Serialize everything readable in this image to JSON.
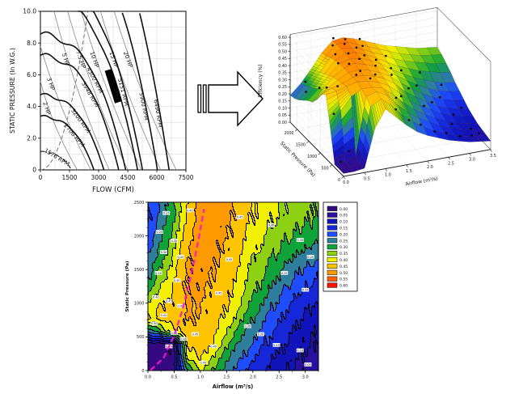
{
  "page": {
    "background": "#ffffff"
  },
  "arrow_icon": {
    "meaning": "transforms-into"
  },
  "chart_data": [
    {
      "id": "fan_performance_map",
      "type": "line",
      "xlabel": "FLOW (CFM)",
      "ylabel": "STATIC PRESSURE (In W.G.)",
      "xlim": [
        0,
        7500
      ],
      "ylim": [
        0,
        10
      ],
      "xtick_labels": [
        "0",
        "1500",
        "3000",
        "4500",
        "6000",
        "7500"
      ],
      "ytick_labels": [
        "0",
        "2.0",
        "4.0",
        "6.0",
        "8.0",
        "10.0"
      ],
      "grid": true,
      "rpm_curves": [
        {
          "label": "1576 RPM",
          "shutoff_pressure": 1.15,
          "free_delivery_cfm": 1611,
          "style": "dashdot",
          "label_t": 0.55
        },
        {
          "label": "2700 RPM",
          "shutoff_pressure": 3.38,
          "free_delivery_cfm": 2760
        },
        {
          "label": "3200 RPM",
          "shutoff_pressure": 4.74,
          "free_delivery_cfm": 3271
        },
        {
          "label": "3948 RPM",
          "shutoff_pressure": 7.22,
          "free_delivery_cfm": 4035
        },
        {
          "label": "4300 RPM",
          "shutoff_pressure": 8.56,
          "free_delivery_cfm": 4395
        },
        {
          "label": "4900 RPM",
          "shutoff_pressure": 11.12,
          "free_delivery_cfm": 5008,
          "highlighted": true
        },
        {
          "label": "5151 RPM",
          "shutoff_pressure": 12.29,
          "free_delivery_cfm": 5264
        },
        {
          "label": "5900 RPM",
          "shutoff_pressure": 16.12,
          "free_delivery_cfm": 6030
        },
        {
          "label": "6490 RPM",
          "shutoff_pressure": 19.5,
          "free_delivery_cfm": 6633
        }
      ],
      "hp_curves": [
        {
          "label": "2 HP",
          "from": [
            0,
            5.6
          ],
          "to": [
            1900,
            0
          ]
        },
        {
          "label": "3 HP",
          "from": [
            0,
            7.8
          ],
          "to": [
            2600,
            0
          ]
        },
        {
          "label": "5 HP",
          "from": [
            700,
            10
          ],
          "to": [
            3550,
            0
          ]
        },
        {
          "label": "7.5 HP",
          "from": [
            1400,
            10
          ],
          "to": [
            4500,
            0
          ]
        },
        {
          "label": "10 HP",
          "from": [
            2100,
            10
          ],
          "to": [
            5200,
            0
          ]
        },
        {
          "label": "15 HP",
          "from": [
            3100,
            10
          ],
          "to": [
            6200,
            0
          ]
        },
        {
          "label": "20 HP",
          "from": [
            3800,
            10
          ],
          "to": [
            7000,
            0
          ]
        }
      ],
      "system_curve": {
        "style": "dashed",
        "end": [
          2450,
          10
        ]
      }
    },
    {
      "id": "efficiency_surface_3d",
      "type": "surface",
      "xlabel": "Airflow (m³/s)",
      "ylabel": "Static Pressure (Pa)",
      "zlabel": "Efficiency (%)",
      "xtick_labels": [
        "0.0",
        "0.5",
        "1.0",
        "1.5",
        "2.0",
        "2.5",
        "3.0",
        "3.5"
      ],
      "ytick_labels": [
        "0",
        "500",
        "1000",
        "1500",
        "2000"
      ],
      "ztick_labels": [
        "0.00",
        "0.05",
        "0.10",
        "0.15",
        "0.20",
        "0.25",
        "0.30",
        "0.35",
        "0.40",
        "0.45",
        "0.50",
        "0.55",
        "0.60"
      ],
      "xlim": [
        0,
        3.5
      ],
      "ylim": [
        0,
        2300
      ],
      "zlim": [
        0,
        0.62
      ],
      "grid": {
        "airflow": [
          0,
          0.25,
          0.5,
          0.75,
          1.0,
          1.25,
          1.5,
          1.75,
          2.0,
          2.25,
          2.5,
          2.75,
          3.0,
          3.25,
          3.5
        ],
        "pressure": [
          0,
          192,
          383,
          575,
          767,
          958,
          1150,
          1342,
          1533,
          1725,
          1917,
          2108,
          2300
        ],
        "efficiency": [
          [
            0.02,
            0.02,
            0.03,
            0.3,
            0.42,
            0.35,
            0.28,
            0.22,
            0.18,
            0.15,
            0.12,
            0.1,
            0.08,
            0.07,
            0.06
          ],
          [
            0.02,
            0.02,
            0.03,
            0.42,
            0.46,
            0.4,
            0.32,
            0.26,
            0.21,
            0.17,
            0.14,
            0.11,
            0.09,
            0.08,
            0.07
          ],
          [
            0.02,
            0.03,
            0.05,
            0.46,
            0.48,
            0.44,
            0.36,
            0.29,
            0.24,
            0.2,
            0.16,
            0.13,
            0.11,
            0.09,
            0.08
          ],
          [
            0.25,
            0.35,
            0.44,
            0.48,
            0.48,
            0.46,
            0.4,
            0.33,
            0.27,
            0.22,
            0.18,
            0.15,
            0.12,
            0.1,
            0.09
          ],
          [
            0.45,
            0.46,
            0.48,
            0.5,
            0.49,
            0.47,
            0.43,
            0.37,
            0.3,
            0.25,
            0.21,
            0.17,
            0.14,
            0.12,
            0.11
          ],
          [
            0.42,
            0.45,
            0.47,
            0.5,
            0.5,
            0.48,
            0.45,
            0.4,
            0.33,
            0.28,
            0.23,
            0.19,
            0.16,
            0.14,
            0.13
          ],
          [
            0.35,
            0.42,
            0.46,
            0.5,
            0.51,
            0.49,
            0.46,
            0.42,
            0.36,
            0.31,
            0.26,
            0.22,
            0.19,
            0.17,
            0.16
          ],
          [
            0.3,
            0.38,
            0.45,
            0.5,
            0.52,
            0.5,
            0.47,
            0.43,
            0.38,
            0.33,
            0.29,
            0.25,
            0.22,
            0.2,
            0.19
          ],
          [
            0.28,
            0.35,
            0.43,
            0.5,
            0.52,
            0.51,
            0.48,
            0.44,
            0.39,
            0.35,
            0.31,
            0.28,
            0.25,
            0.23,
            0.22
          ],
          [
            0.25,
            0.32,
            0.41,
            0.49,
            0.53,
            0.52,
            0.49,
            0.45,
            0.41,
            0.37,
            0.34,
            0.31,
            0.29,
            0.27,
            0.26
          ],
          [
            0.22,
            0.3,
            0.39,
            0.48,
            0.53,
            0.52,
            0.5,
            0.46,
            0.43,
            0.39,
            0.36,
            0.34,
            0.32,
            0.3,
            0.29
          ],
          [
            0.2,
            0.28,
            0.37,
            0.46,
            0.53,
            0.53,
            0.5,
            0.47,
            0.44,
            0.41,
            0.38,
            0.36,
            0.34,
            0.33,
            0.32
          ],
          [
            0.19,
            0.26,
            0.35,
            0.45,
            0.52,
            0.53,
            0.51,
            0.48,
            0.45,
            0.42,
            0.4,
            0.38,
            0.36,
            0.35,
            0.34
          ]
        ]
      },
      "scatter_points": [
        [
          0.7,
          1500
        ],
        [
          0.8,
          1800
        ],
        [
          0.9,
          2100
        ],
        [
          1.0,
          2250
        ],
        [
          1.1,
          1950
        ],
        [
          1.2,
          2100
        ],
        [
          1.3,
          1800
        ],
        [
          1.0,
          1600
        ],
        [
          1.15,
          1400
        ],
        [
          1.35,
          1550
        ],
        [
          1.5,
          1900
        ],
        [
          1.6,
          2200
        ],
        [
          1.45,
          1250
        ],
        [
          0.85,
          1300
        ],
        [
          0.95,
          1000
        ],
        [
          1.25,
          900
        ],
        [
          1.05,
          750
        ],
        [
          0.8,
          900
        ],
        [
          1.6,
          1500
        ],
        [
          1.75,
          1100
        ],
        [
          1.9,
          1400
        ],
        [
          2.0,
          1800
        ],
        [
          2.1,
          1000
        ],
        [
          2.2,
          1500
        ],
        [
          2.3,
          700
        ],
        [
          2.4,
          1200
        ],
        [
          1.7,
          600
        ],
        [
          1.5,
          450
        ],
        [
          2.6,
          900
        ],
        [
          2.7,
          1600
        ],
        [
          2.8,
          400
        ],
        [
          2.9,
          1100
        ],
        [
          3.0,
          700
        ],
        [
          3.1,
          1400
        ],
        [
          3.2,
          300
        ],
        [
          3.3,
          900
        ],
        [
          1.3,
          100
        ],
        [
          1.6,
          80
        ],
        [
          1.9,
          120
        ],
        [
          2.2,
          60
        ],
        [
          2.5,
          100
        ],
        [
          2.8,
          50
        ],
        [
          3.1,
          90
        ],
        [
          3.3,
          150
        ],
        [
          0.1,
          600
        ],
        [
          0.15,
          1000
        ],
        [
          0.2,
          1400
        ],
        [
          0.1,
          1800
        ],
        [
          0.25,
          2100
        ],
        [
          0.3,
          800
        ],
        [
          0.1,
          300
        ],
        [
          0.35,
          400
        ]
      ]
    },
    {
      "id": "efficiency_contour",
      "type": "heatmap",
      "xlabel": "Airflow (m³/s)",
      "ylabel": "Static Pressure (Pa)",
      "xtick_labels": [
        "0.0",
        "0.5",
        "1.0",
        "1.5",
        "2.0",
        "2.5",
        "3.0"
      ],
      "ytick_labels": [
        "0",
        "500",
        "1000",
        "1500",
        "2000",
        "2500"
      ],
      "xlim": [
        0,
        3.25
      ],
      "ylim": [
        0,
        2500
      ],
      "colormap_levels": [
        0.0,
        0.05,
        0.1,
        0.15,
        0.2,
        0.25,
        0.3,
        0.35,
        0.4,
        0.45,
        0.5,
        0.55,
        0.6
      ],
      "colormap_colors": [
        "#350a80",
        "#2a10a0",
        "#1113bb",
        "#1527d9",
        "#1e4cff",
        "#2e7f9e",
        "#0fa33a",
        "#8ed112",
        "#f0f000",
        "#ffc400",
        "#ff9900",
        "#ff5e00",
        "#ff1000"
      ],
      "legend_labels": [
        "0.00",
        "0.05",
        "0.10",
        "0.15",
        "0.20",
        "0.25",
        "0.30",
        "0.35",
        "0.40",
        "0.45",
        "0.50",
        "0.55",
        "0.60"
      ],
      "operating_line": {
        "color": "#ff14c8",
        "style": "dashed",
        "points_qp": [
          [
            0.05,
            5
          ],
          [
            0.3,
            190
          ],
          [
            0.5,
            520
          ],
          [
            0.65,
            880
          ],
          [
            0.78,
            1270
          ],
          [
            0.88,
            1620
          ],
          [
            0.97,
            1970
          ],
          [
            1.04,
            2270
          ],
          [
            1.07,
            2400
          ]
        ]
      },
      "contour_label_points": [
        [
          0.35,
          2340
        ],
        [
          0.8,
          2380
        ],
        [
          0.22,
          2060
        ],
        [
          0.5,
          1930
        ],
        [
          0.3,
          1760
        ],
        [
          0.62,
          1690
        ],
        [
          0.2,
          1450
        ],
        [
          0.55,
          1340
        ],
        [
          0.15,
          1090
        ],
        [
          0.4,
          1030
        ],
        [
          0.62,
          960
        ],
        [
          0.3,
          820
        ],
        [
          0.12,
          700
        ],
        [
          0.5,
          560
        ],
        [
          0.68,
          470
        ],
        [
          0.4,
          360
        ],
        [
          0.9,
          540
        ],
        [
          1.25,
          360
        ],
        [
          1.05,
          120
        ],
        [
          1.9,
          660
        ],
        [
          2.15,
          540
        ],
        [
          2.45,
          380
        ],
        [
          2.9,
          300
        ],
        [
          3.05,
          90
        ],
        [
          1.75,
          2280
        ],
        [
          2.35,
          2160
        ],
        [
          2.9,
          1940
        ],
        [
          3.1,
          1690
        ],
        [
          2.6,
          1450
        ],
        [
          3.0,
          1200
        ],
        [
          1.55,
          1650
        ],
        [
          1.35,
          1150
        ]
      ]
    }
  ]
}
